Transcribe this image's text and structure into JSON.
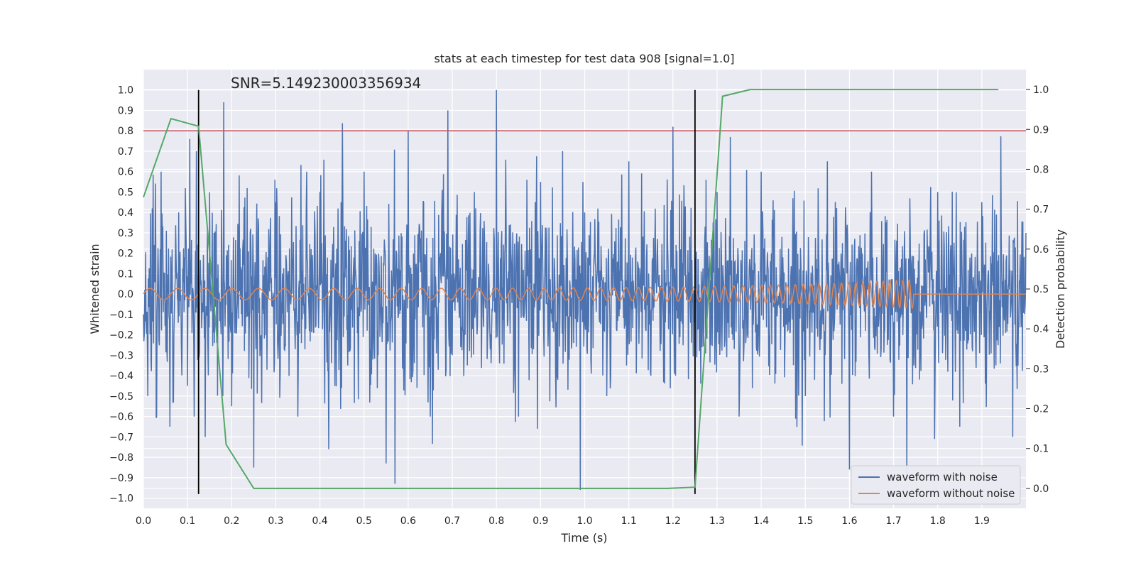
{
  "chart_data": {
    "type": "line",
    "title": "stats at each timestep for test data 908 [signal=1.0]",
    "xlabel": "Time (s)",
    "ylabel": "Whitened strain",
    "ylabel_right": "Detection probability",
    "xlim": [
      0.0,
      2.0
    ],
    "ylim": [
      -1.05,
      1.1
    ],
    "ylim_right": [
      -0.05,
      1.05
    ],
    "x_ticks": [
      "0.0",
      "0.1",
      "0.2",
      "0.3",
      "0.4",
      "0.5",
      "0.6",
      "0.7",
      "0.8",
      "0.9",
      "1.0",
      "1.1",
      "1.2",
      "1.3",
      "1.4",
      "1.5",
      "1.6",
      "1.7",
      "1.8",
      "1.9"
    ],
    "y_ticks": [
      "1.0",
      "0.9",
      "0.8",
      "0.7",
      "0.6",
      "0.5",
      "0.4",
      "0.3",
      "0.2",
      "0.1",
      "0.0",
      "−0.1",
      "−0.2",
      "−0.3",
      "−0.4",
      "−0.5",
      "−0.6",
      "−0.7",
      "−0.8",
      "−0.9",
      "−1.0"
    ],
    "y_ticks_right": [
      "1.0",
      "0.9",
      "0.8",
      "0.7",
      "0.6",
      "0.5",
      "0.4",
      "0.3",
      "0.2",
      "0.1",
      "0.0"
    ],
    "grid": true,
    "legend_position": "lower-right",
    "annotation": "SNR=5.149230003356934",
    "series": [
      {
        "name": "waveform with noise",
        "color": "#4c72b0",
        "axis": "left",
        "description_points": [
          [
            0.0,
            -0.1
          ],
          [
            0.01,
            -0.5
          ],
          [
            0.02,
            0.42
          ],
          [
            0.03,
            -0.6
          ],
          [
            0.04,
            0.6
          ],
          [
            0.06,
            -0.65
          ],
          [
            0.08,
            0.4
          ],
          [
            0.1,
            -0.45
          ],
          [
            0.105,
            0.76
          ],
          [
            0.115,
            -0.6
          ],
          [
            0.12,
            0.7
          ],
          [
            0.14,
            -0.7
          ],
          [
            0.16,
            0.3
          ],
          [
            0.18,
            -0.5
          ],
          [
            0.182,
            0.94
          ],
          [
            0.2,
            -0.55
          ],
          [
            0.25,
            -0.85
          ],
          [
            0.3,
            0.45
          ],
          [
            0.35,
            -0.6
          ],
          [
            0.37,
            0.6
          ],
          [
            0.4,
            0.5
          ],
          [
            0.42,
            -0.76
          ],
          [
            0.45,
            0.4
          ],
          [
            0.5,
            0.6
          ],
          [
            0.55,
            -0.83
          ],
          [
            0.57,
            -0.93
          ],
          [
            0.6,
            0.8
          ],
          [
            0.65,
            -0.6
          ],
          [
            0.69,
            0.9
          ],
          [
            0.7,
            -0.3
          ],
          [
            0.75,
            0.5
          ],
          [
            0.8,
            1.0
          ],
          [
            0.85,
            -0.6
          ],
          [
            0.9,
            0.55
          ],
          [
            0.95,
            0.7
          ],
          [
            0.99,
            -0.96
          ],
          [
            1.0,
            0.4
          ],
          [
            1.05,
            -0.5
          ],
          [
            1.1,
            0.65
          ],
          [
            1.15,
            -0.4
          ],
          [
            1.2,
            0.82
          ],
          [
            1.25,
            -0.5
          ],
          [
            1.3,
            0.5
          ],
          [
            1.33,
            0.77
          ],
          [
            1.35,
            -0.6
          ],
          [
            1.4,
            0.6
          ],
          [
            1.5,
            -0.5
          ],
          [
            1.55,
            0.65
          ],
          [
            1.6,
            -0.86
          ],
          [
            1.65,
            0.6
          ],
          [
            1.7,
            -0.6
          ],
          [
            1.73,
            -0.88
          ],
          [
            1.8,
            0.5
          ],
          [
            1.85,
            -0.65
          ],
          [
            1.9,
            0.45
          ],
          [
            1.97,
            -0.7
          ],
          [
            2.0,
            0.3
          ]
        ]
      },
      {
        "name": "waveform without noise",
        "color": "#dd8452",
        "axis": "left",
        "description": "chirp with amplitude ~0.03 growing to ~0.07 and frequency rising until ~1.75 s, then flat at 0"
      },
      {
        "name": "Detection probability",
        "color": "#55a868",
        "axis": "right",
        "x": [
          0.0,
          0.0625,
          0.125,
          0.1875,
          0.25,
          0.3125,
          1.1875,
          1.25,
          1.3125,
          1.375,
          1.4375,
          1.9375
        ],
        "y": [
          0.73,
          0.927,
          0.908,
          0.11,
          0.0,
          0.0,
          0.0,
          0.003,
          0.983,
          1.0,
          1.0,
          1.0
        ]
      }
    ],
    "threshold": {
      "value": 0.8,
      "color": "#c44e52",
      "axis": "left"
    },
    "vertical_lines": {
      "x": [
        0.125,
        1.25
      ],
      "color": "#000000"
    },
    "legend": [
      {
        "label": "waveform with noise",
        "color": "#4c72b0"
      },
      {
        "label": "waveform without noise",
        "color": "#dd8452"
      }
    ]
  }
}
